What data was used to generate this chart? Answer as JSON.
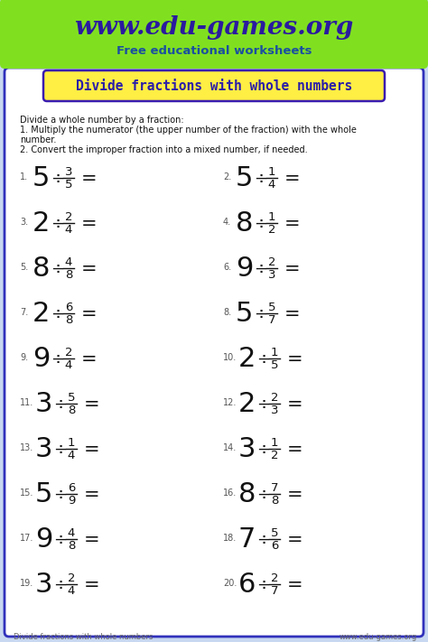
{
  "title_url": "www.edu-games.org",
  "title_sub": "Free educational worksheets",
  "worksheet_title": "Divide fractions with whole numbers",
  "instructions": [
    "Divide a whole number by a fraction:",
    "1. Multiply the numerator (the upper number of the fraction) with the whole",
    "number.",
    "2. Convert the improper fraction into a mixed number, if needed."
  ],
  "problems": [
    {
      "num": 1,
      "whole": "5",
      "numer": "3",
      "denom": "5"
    },
    {
      "num": 2,
      "whole": "5",
      "numer": "1",
      "denom": "4"
    },
    {
      "num": 3,
      "whole": "2",
      "numer": "2",
      "denom": "4"
    },
    {
      "num": 4,
      "whole": "8",
      "numer": "1",
      "denom": "2"
    },
    {
      "num": 5,
      "whole": "8",
      "numer": "4",
      "denom": "8"
    },
    {
      "num": 6,
      "whole": "9",
      "numer": "2",
      "denom": "3"
    },
    {
      "num": 7,
      "whole": "2",
      "numer": "6",
      "denom": "8"
    },
    {
      "num": 8,
      "whole": "5",
      "numer": "5",
      "denom": "7"
    },
    {
      "num": 9,
      "whole": "9",
      "numer": "2",
      "denom": "4"
    },
    {
      "num": 10,
      "whole": "2",
      "numer": "1",
      "denom": "5"
    },
    {
      "num": 11,
      "whole": "3",
      "numer": "5",
      "denom": "8"
    },
    {
      "num": 12,
      "whole": "2",
      "numer": "2",
      "denom": "3"
    },
    {
      "num": 13,
      "whole": "3",
      "numer": "1",
      "denom": "4"
    },
    {
      "num": 14,
      "whole": "3",
      "numer": "1",
      "denom": "2"
    },
    {
      "num": 15,
      "whole": "5",
      "numer": "6",
      "denom": "9"
    },
    {
      "num": 16,
      "whole": "8",
      "numer": "7",
      "denom": "8"
    },
    {
      "num": 17,
      "whole": "9",
      "numer": "4",
      "denom": "8"
    },
    {
      "num": 18,
      "whole": "7",
      "numer": "5",
      "denom": "6"
    },
    {
      "num": 19,
      "whole": "3",
      "numer": "2",
      "denom": "4"
    },
    {
      "num": 20,
      "whole": "6",
      "numer": "2",
      "denom": "7"
    }
  ],
  "header_bg": "#80E020",
  "header_border": "#60BB00",
  "title_color": "#2A1A9F",
  "sub_color": "#1A4FA0",
  "worksheet_title_color": "#2B1EA8",
  "worksheet_title_bg": "#FFEE44",
  "worksheet_title_border": "#3A1CAF",
  "main_bg": "#FFFFFF",
  "main_border": "#3030BB",
  "footer_text_color": "#666666",
  "problem_number_color": "#555555",
  "problem_color": "#111111",
  "outer_bg": "#C8D8F0"
}
